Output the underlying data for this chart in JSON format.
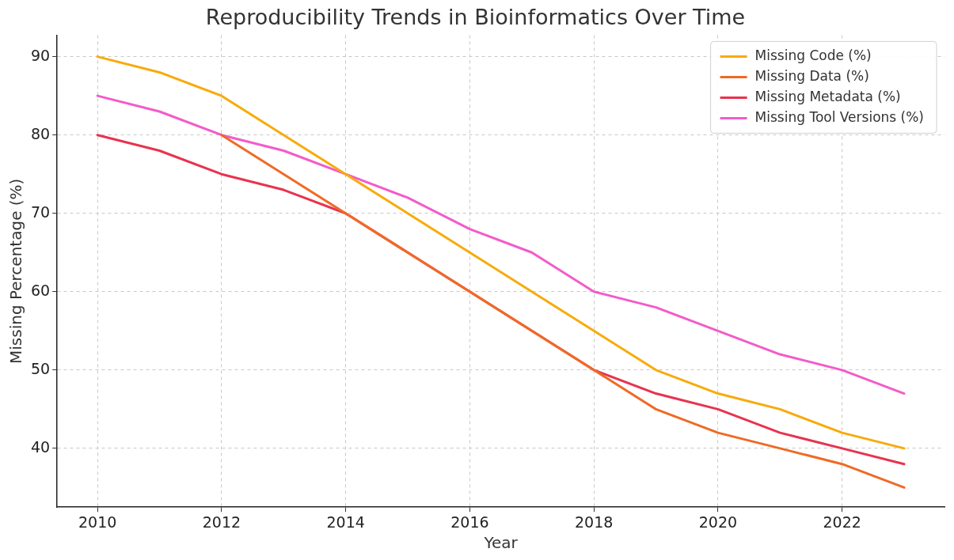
{
  "chart_data": {
    "type": "line",
    "title": "Reproducibility Trends in Bioinformatics Over Time",
    "xlabel": "Year",
    "ylabel": "Missing Percentage (%)",
    "x": [
      2010,
      2011,
      2012,
      2013,
      2014,
      2015,
      2016,
      2017,
      2018,
      2019,
      2020,
      2021,
      2022,
      2023
    ],
    "series": [
      {
        "name": "Missing Code (%)",
        "color": "#f7ab0a",
        "values": [
          90,
          88,
          85,
          80,
          75,
          70,
          65,
          60,
          55,
          50,
          47,
          45,
          42,
          40
        ]
      },
      {
        "name": "Missing Data (%)",
        "color": "#ef6a25",
        "values": [
          null,
          null,
          80,
          75,
          70,
          65,
          60,
          55,
          50,
          45,
          42,
          40,
          38,
          35
        ]
      },
      {
        "name": "Missing Metadata (%)",
        "color": "#e8334f",
        "values": [
          80,
          78,
          75,
          73,
          70,
          65,
          60,
          55,
          50,
          47,
          45,
          42,
          40,
          38
        ]
      },
      {
        "name": "Missing Tool Versions (%)",
        "color": "#f35bc9",
        "values": [
          85,
          83,
          80,
          78,
          75,
          72,
          68,
          65,
          60,
          58,
          55,
          52,
          50,
          47
        ]
      }
    ],
    "xlim": [
      2009.35,
      2023.65
    ],
    "xticks": [
      2010,
      2012,
      2014,
      2016,
      2018,
      2020,
      2022
    ],
    "ylim": [
      32.5,
      92.75
    ],
    "yticks": [
      40,
      50,
      60,
      70,
      80,
      90
    ],
    "grid": true,
    "legend": "top right",
    "marker": "none",
    "line_style": "solid"
  }
}
